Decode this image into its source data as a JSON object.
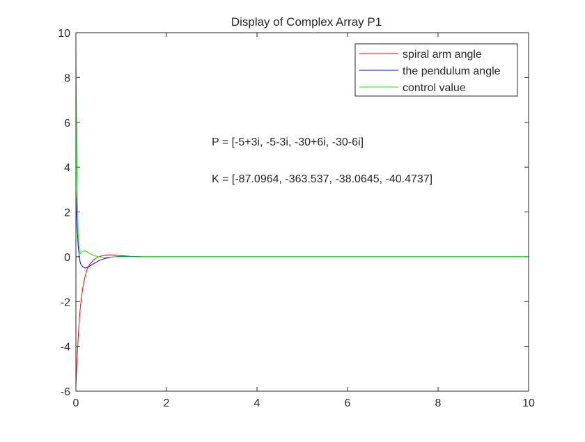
{
  "chart_data": {
    "type": "line",
    "title": "Display of Complex Array P1",
    "xlabel": "",
    "ylabel": "",
    "xlim": [
      0,
      10
    ],
    "ylim": [
      -6,
      10
    ],
    "xticks": [
      "0",
      "2",
      "4",
      "6",
      "8",
      "10"
    ],
    "yticks": [
      "-6",
      "-4",
      "-2",
      "0",
      "2",
      "4",
      "6",
      "8",
      "10"
    ],
    "grid": false,
    "legend_placement": "top-right",
    "x": [
      0,
      0.02,
      0.05,
      0.08,
      0.1,
      0.15,
      0.2,
      0.25,
      0.3,
      0.4,
      0.5,
      0.6,
      0.7,
      0.8,
      1.0,
      1.2,
      1.5,
      2,
      10
    ],
    "series": [
      {
        "name": "spiral arm angle",
        "color": "#ff0000",
        "values": [
          -5.8,
          -4.8,
          -3.6,
          -2.7,
          -2.2,
          -1.4,
          -0.9,
          -0.55,
          -0.35,
          -0.12,
          0,
          0.05,
          0.08,
          0.08,
          0.05,
          0.02,
          0,
          0,
          0
        ]
      },
      {
        "name": "the pendulum angle",
        "color": "#0000ff",
        "values": [
          3,
          1.6,
          0.5,
          -0.1,
          -0.3,
          -0.45,
          -0.5,
          -0.48,
          -0.42,
          -0.3,
          -0.18,
          -0.1,
          -0.05,
          -0.01,
          0.02,
          0.01,
          0,
          0,
          0
        ]
      },
      {
        "name": "control value",
        "color": "#00ff00",
        "values": [
          9.5,
          4,
          1,
          0.2,
          0.15,
          0.25,
          0.27,
          0.22,
          0.15,
          0.05,
          0,
          -0.02,
          -0.02,
          -0.01,
          0,
          0,
          0,
          0,
          0
        ]
      }
    ],
    "annotations": [
      {
        "text": "P = [-5+3i, -5-3i, -30+6i, -30-6i]",
        "x": 3,
        "y": 5.15
      },
      {
        "text": "K = [-87.0964, -363.537, -38.0645, -40.4737]",
        "x": 3,
        "y": 3.5
      }
    ]
  }
}
